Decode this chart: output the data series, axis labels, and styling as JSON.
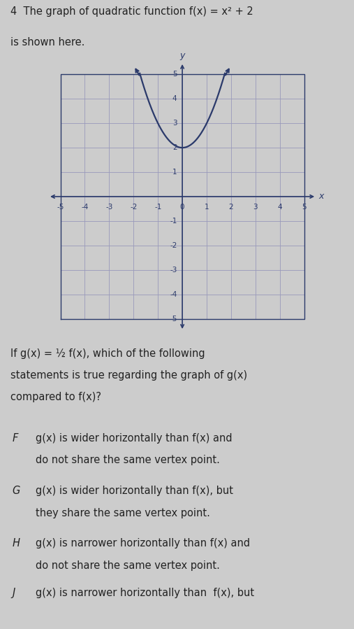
{
  "title_line1": "4  The graph of quadratic function f(x) = x² + 2",
  "title_line2": "is shown here.",
  "background_color": "#cccccc",
  "graph_bg_color": "#f0f0f0",
  "curve_color": "#2b3a6b",
  "grid_color": "#9999bb",
  "axis_color": "#2b3a6b",
  "xmin": -5,
  "xmax": 5,
  "ymin": -5,
  "ymax": 5,
  "question_text": "If g(x) = ½ f(x), which of the following\nstatements is true regarding the graph of g(x)\ncompared to f(x)?",
  "options": [
    {
      "letter": "F",
      "text1": "g(x) is wider horizontally than f(x) and",
      "text2": "do not share the same vertex point."
    },
    {
      "letter": "G",
      "text1": "g(x) is wider horizontally than f(x), but",
      "text2": "they share the same vertex point."
    },
    {
      "letter": "H",
      "text1": "g(x) is narrower horizontally than f(x) and",
      "text2": "do not share the same vertex point."
    },
    {
      "letter": "J",
      "text1": "g(x) is narrower horizontally than  f(x), but",
      "text2": ""
    }
  ],
  "text_color": "#222222",
  "title_fontsize": 10.5,
  "body_fontsize": 10.5
}
